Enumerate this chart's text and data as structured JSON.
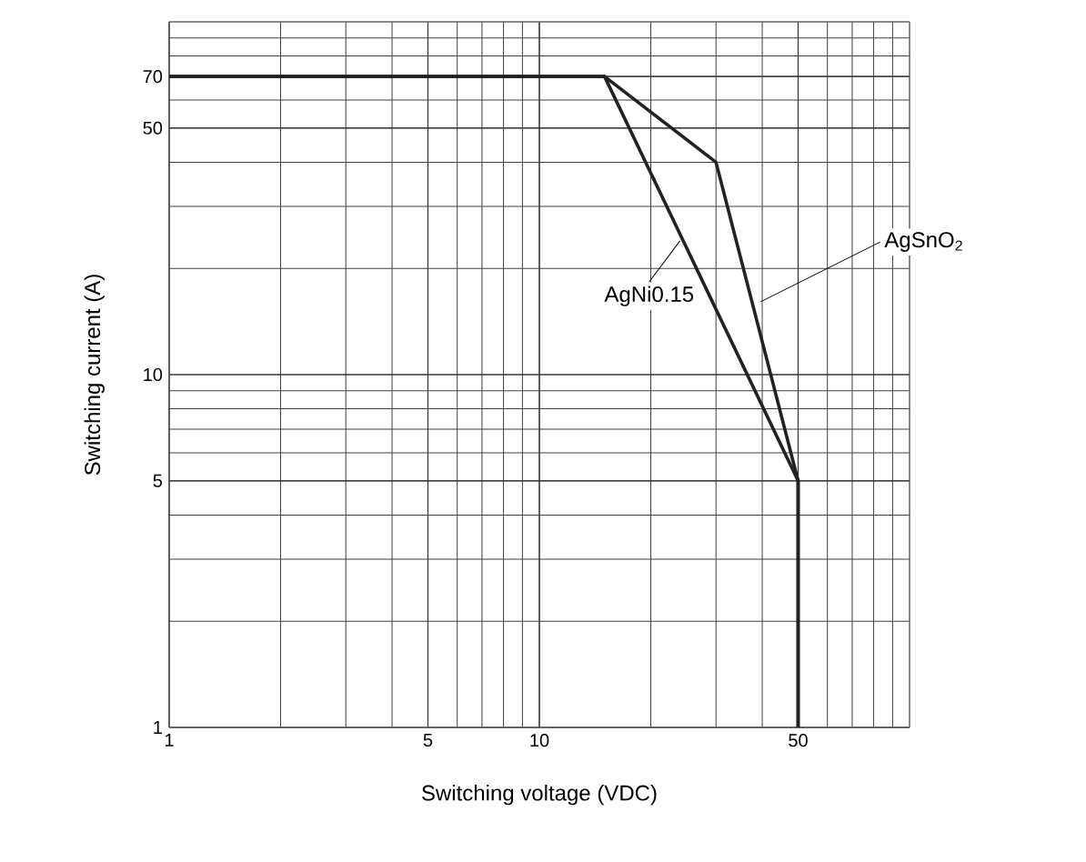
{
  "chart_data": {
    "type": "line",
    "xlabel": "Switching voltage (VDC)",
    "ylabel": "Switching current (A)",
    "log": "xy",
    "grid": true,
    "marker": "none",
    "line_style": "solid",
    "xlim": [
      1,
      100
    ],
    "ylim": [
      1,
      100
    ],
    "xticks": [
      1,
      5,
      10,
      50
    ],
    "yticks": [
      1,
      5,
      10,
      50,
      70
    ],
    "series": [
      {
        "name": "AgNi0.15",
        "color": "#222222",
        "x": [
          1,
          15,
          50,
          50
        ],
        "values": [
          70,
          70,
          5,
          1
        ]
      },
      {
        "name": "AgSnO$_{2}$",
        "color": "#222222",
        "x": [
          1,
          15,
          30,
          50,
          50
        ],
        "values": [
          70,
          70,
          40,
          5,
          1
        ]
      }
    ]
  }
}
